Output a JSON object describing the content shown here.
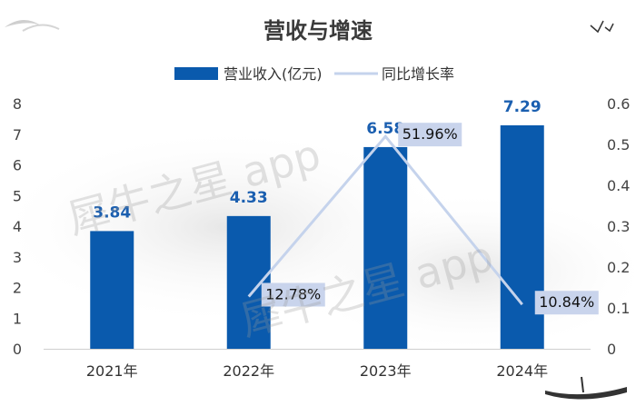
{
  "chart_data": {
    "type": "bar",
    "title": "营收与增速",
    "categories": [
      "2021年",
      "2022年",
      "2023年",
      "2024年"
    ],
    "series": [
      {
        "name": "营业收入(亿元)",
        "type": "bar",
        "axis": "left",
        "values": [
          3.84,
          4.33,
          6.58,
          7.29
        ],
        "labels": [
          "3.84",
          "4.33",
          "6.58",
          "7.29"
        ],
        "color": "#0a5aad"
      },
      {
        "name": "同比增长率",
        "type": "line",
        "axis": "right",
        "values": [
          null,
          0.1278,
          0.5196,
          0.1084
        ],
        "labels": [
          "",
          "12.78%",
          "51.96%",
          "10.84%"
        ],
        "color": "#c5d3ec"
      }
    ],
    "y_left": {
      "min": 0,
      "max": 8,
      "ticks": [
        "0",
        "1",
        "2",
        "3",
        "4",
        "5",
        "6",
        "7",
        "8"
      ]
    },
    "y_right": {
      "min": 0,
      "max": 0.6,
      "ticks": [
        "0",
        "0.1",
        "0.2",
        "0.3",
        "0.4",
        "0.5",
        "0.6"
      ]
    },
    "legend_position": "top",
    "grid": false
  },
  "watermark": "犀牛之星 app"
}
